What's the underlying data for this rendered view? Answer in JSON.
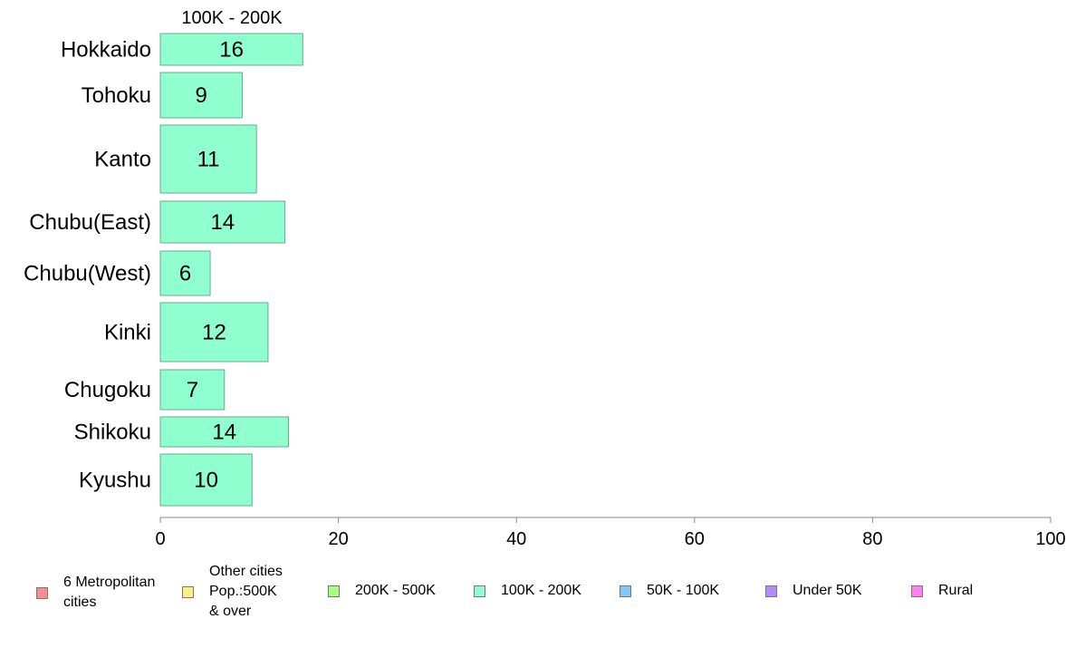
{
  "chart_data": {
    "type": "bar",
    "orientation": "horizontal",
    "panel_title": "100K - 200K",
    "categories": [
      "Hokkaido",
      "Tohoku",
      "Kanto",
      "Chubu(East)",
      "Chubu(West)",
      "Kinki",
      "Chugoku",
      "Shikoku",
      "Kyushu"
    ],
    "series": [
      {
        "name": "100K - 200K",
        "color": "#8fffd0",
        "values": [
          16,
          9,
          11,
          14,
          6,
          12,
          7,
          14,
          10
        ],
        "bar_values": [
          16,
          9.2,
          10.8,
          14,
          5.6,
          12.1,
          7.2,
          14.4,
          10.3
        ]
      }
    ],
    "xlim": [
      0,
      100
    ],
    "x_ticks": [
      "0",
      "20",
      "40",
      "60",
      "80",
      "100"
    ],
    "grid": false
  },
  "legend": {
    "placement": "bottom",
    "items": [
      {
        "label": "6 Metropolitan\n cities",
        "color": "#ff8c8c"
      },
      {
        "label": "Other cities\nPop.:500K\n & over",
        "color": "#ffee80"
      },
      {
        "label": "200K - 500K",
        "color": "#a8ff80"
      },
      {
        "label": "100K - 200K",
        "color": "#8fffd0"
      },
      {
        "label": "50K - 100K",
        "color": "#80c8ff"
      },
      {
        "label": "Under 50K",
        "color": "#b08cff"
      },
      {
        "label": "Rural",
        "color": "#ff80f0"
      }
    ]
  }
}
